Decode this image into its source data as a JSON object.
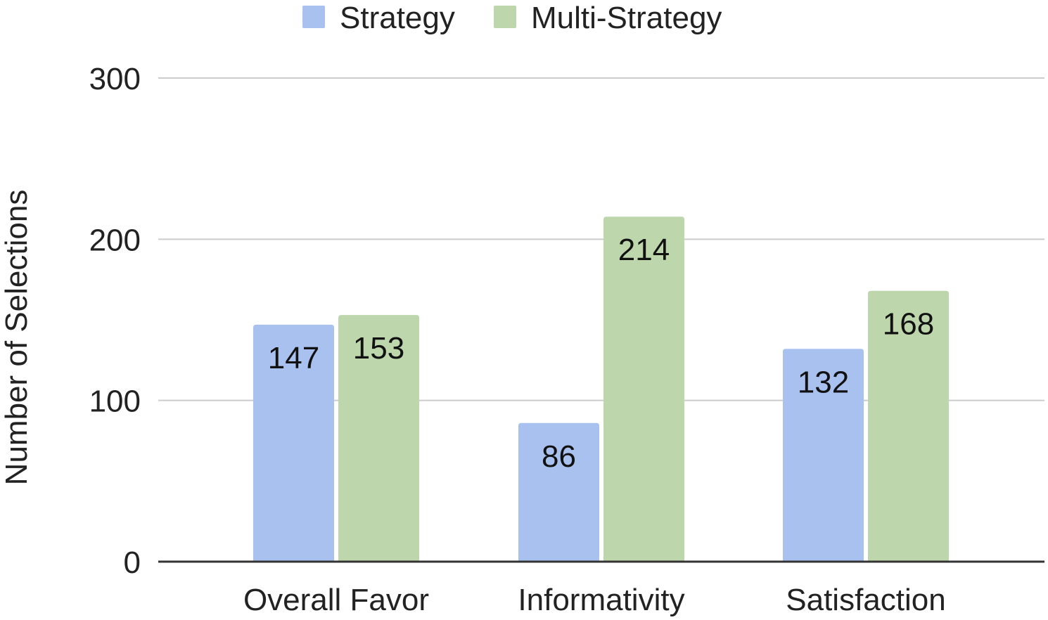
{
  "chart_data": {
    "type": "bar",
    "title": "",
    "xlabel": "",
    "ylabel": "Number of Selections",
    "categories": [
      "Overall Favor",
      "Informativity",
      "Satisfaction"
    ],
    "series": [
      {
        "name": "Strategy",
        "values": [
          147,
          86,
          132
        ],
        "color": "#a9c1ef"
      },
      {
        "name": "Multi-Strategy",
        "values": [
          153,
          214,
          168
        ],
        "color": "#bdd6ac"
      }
    ],
    "ylim": [
      0,
      300
    ],
    "yticks": [
      0,
      100,
      200,
      300
    ],
    "grid": true,
    "legend": "top-center",
    "data_labels": true,
    "gridline_color": "#cccccc",
    "axis_color": "#333333"
  }
}
